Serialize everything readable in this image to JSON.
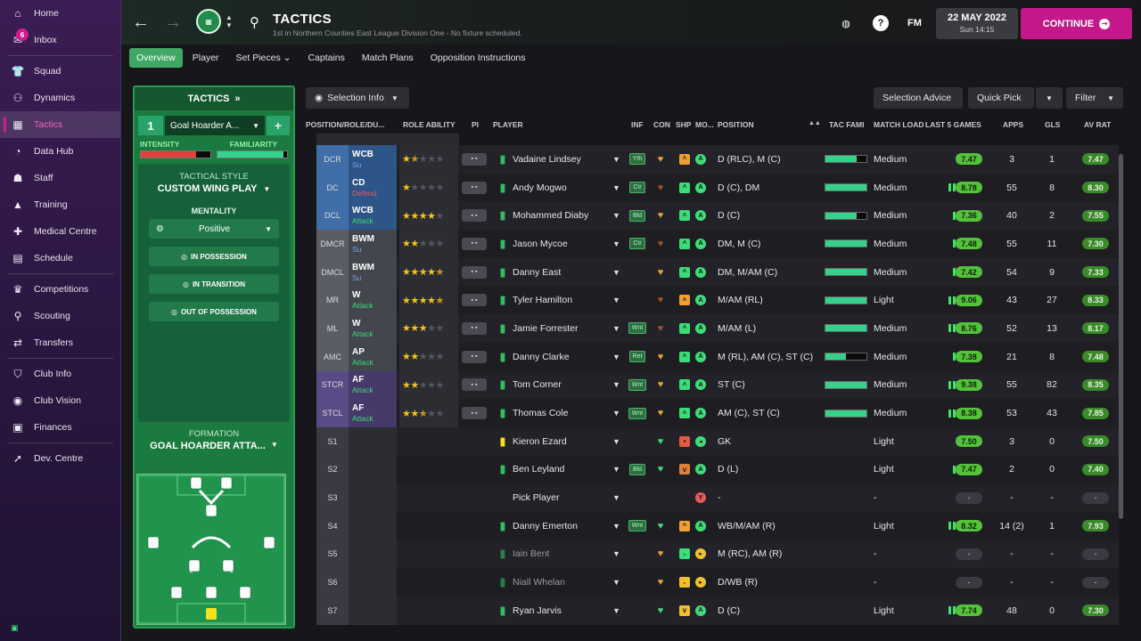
{
  "sidebar": {
    "items": [
      {
        "label": "Home",
        "icon": "home-icon",
        "glyph": "⌂"
      },
      {
        "label": "Inbox",
        "icon": "inbox-icon",
        "glyph": "✉",
        "badge": "6"
      },
      {
        "label": "Squad",
        "icon": "shirt-icon",
        "glyph": "👕"
      },
      {
        "label": "Dynamics",
        "icon": "dynamics-icon",
        "glyph": "⚇"
      },
      {
        "label": "Tactics",
        "icon": "tactics-icon",
        "glyph": "▦"
      },
      {
        "label": "Data Hub",
        "icon": "data-hub-icon",
        "glyph": "◔"
      },
      {
        "label": "Staff",
        "icon": "staff-icon",
        "glyph": "☗"
      },
      {
        "label": "Training",
        "icon": "training-icon",
        "glyph": "▲"
      },
      {
        "label": "Medical Centre",
        "icon": "medical-icon",
        "glyph": "✚"
      },
      {
        "label": "Schedule",
        "icon": "calendar-icon",
        "glyph": "▤"
      },
      {
        "label": "Competitions",
        "icon": "trophy-icon",
        "glyph": "♛"
      },
      {
        "label": "Scouting",
        "icon": "search-icon",
        "glyph": "⚲"
      },
      {
        "label": "Transfers",
        "icon": "transfers-icon",
        "glyph": "⇄"
      },
      {
        "label": "Club Info",
        "icon": "shield-icon",
        "glyph": "⛉"
      },
      {
        "label": "Club Vision",
        "icon": "vision-icon",
        "glyph": "◉"
      },
      {
        "label": "Finances",
        "icon": "finances-icon",
        "glyph": "▣"
      },
      {
        "label": "Dev. Centre",
        "icon": "dev-centre-icon",
        "glyph": "➚"
      }
    ],
    "active": "Tactics"
  },
  "header": {
    "title": "TACTICS",
    "subtitle": "1st in Northern Counties East League Division One - No fixture scheduled.",
    "date": "22 MAY 2022",
    "time": "Sun 14:15",
    "fm_label": "FM",
    "continue_label": "CONTINUE"
  },
  "tabs": [
    "Overview",
    "Player",
    "Set Pieces ⌄",
    "Captains",
    "Match Plans",
    "Opposition Instructions"
  ],
  "tactics_panel": {
    "header": "TACTICS",
    "slot_number": "1",
    "tactic_name": "Goal Hoarder A...",
    "intensity_label": "INTENSITY",
    "familiarity_label": "FAMILIARITY",
    "intensity_level": 0.8,
    "familiarity_level": 0.95,
    "tactical_style_label": "TACTICAL STYLE",
    "tactical_style": "CUSTOM WING PLAY",
    "mentality_label": "MENTALITY",
    "mentality": "Positive",
    "in_possession": "IN POSSESSION",
    "in_transition": "IN TRANSITION",
    "out_of_possession": "OUT OF POSSESSION",
    "formation_label": "FORMATION",
    "formation_name": "GOAL HOARDER ATTA..."
  },
  "toolbar": {
    "selection_info": "Selection Info",
    "selection_advice": "Selection Advice",
    "quick_pick": "Quick Pick",
    "filter": "Filter"
  },
  "columns": {
    "position_role_duty": "POSITION/ROLE/DU...",
    "role_ability": "ROLE ABILITY",
    "pi": "PI",
    "player": "PLAYER",
    "inf": "INF",
    "con": "CON",
    "shp": "SHP",
    "mo": "MO...",
    "position": "POSITION",
    "tac_fami": "TAC FAMI",
    "match_load": "MATCH LOAD",
    "last5": "LAST 5 GAMES",
    "apps": "APPS",
    "gls": "GLS",
    "av_rat": "AV RAT"
  },
  "rows": [
    {
      "pos": "DCR",
      "role": "WCB",
      "duty": "Su",
      "stars": 1.5,
      "player": "Vadaine Lindsey",
      "inf": "Yth",
      "con": "♥",
      "conColor": "#e8a03a",
      "shp": "^",
      "shpColor": "#f0a030",
      "mo": "A",
      "moColor": "#3ddc78",
      "position": "D (RLC), M (C)",
      "tacf": 0.75,
      "load": "Medium",
      "form": 3,
      "last5": "7.47",
      "apps": "3",
      "gls": "1",
      "avrat": "7.47",
      "group": "blue"
    },
    {
      "pos": "DC",
      "role": "CD",
      "duty": "Defend",
      "stars": 1,
      "player": "Andy Mogwo",
      "inf": "Ctr",
      "con": "♥",
      "conColor": "#a0522d",
      "shp": "^",
      "shpColor": "#3ddc78",
      "mo": "A",
      "moColor": "#3ddc78",
      "position": "D (C), DM",
      "tacf": 1.0,
      "load": "Medium",
      "form": 5,
      "last5": "8.78",
      "apps": "55",
      "gls": "8",
      "avrat": "8.30",
      "group": "blue"
    },
    {
      "pos": "DCL",
      "role": "WCB",
      "duty": "Attack",
      "stars": 4,
      "player": "Mohammed Diaby",
      "inf": "Bld",
      "con": "♥",
      "conColor": "#e8a03a",
      "shp": "^",
      "shpColor": "#3ddc78",
      "mo": "A",
      "moColor": "#3ddc78",
      "position": "D (C)",
      "tacf": 0.75,
      "load": "Medium",
      "form": 4,
      "last5": "7.36",
      "apps": "40",
      "gls": "2",
      "avrat": "7.55",
      "group": "blue"
    },
    {
      "pos": "DMCR",
      "role": "BWM",
      "duty": "Su",
      "stars": 2,
      "player": "Jason Mycoe",
      "inf": "Ctr",
      "con": "♥",
      "conColor": "#a0522d",
      "shp": "^",
      "shpColor": "#3ddc78",
      "mo": "A",
      "moColor": "#3ddc78",
      "position": "DM, M (C)",
      "tacf": 1.0,
      "load": "Medium",
      "form": 4,
      "last5": "7.48",
      "apps": "55",
      "gls": "11",
      "avrat": "7.30",
      "group": "grey"
    },
    {
      "pos": "DMCL",
      "role": "BWM",
      "duty": "Su",
      "stars": 4.5,
      "player": "Danny East",
      "inf": "",
      "con": "♥",
      "conColor": "#e8a03a",
      "shp": "^",
      "shpColor": "#3ddc78",
      "mo": "A",
      "moColor": "#3ddc78",
      "position": "DM, M/AM (C)",
      "tacf": 1.0,
      "load": "Medium",
      "form": 4,
      "last5": "7.42",
      "apps": "54",
      "gls": "9",
      "avrat": "7.33",
      "group": "grey"
    },
    {
      "pos": "MR",
      "role": "W",
      "duty": "Attack",
      "stars": 4.5,
      "player": "Tyler Hamilton",
      "inf": "",
      "con": "♥",
      "conColor": "#a0522d",
      "shp": "^",
      "shpColor": "#f0a030",
      "mo": "A",
      "moColor": "#3ddc78",
      "position": "M/AM (RL)",
      "tacf": 1.0,
      "load": "Light",
      "form": 5,
      "last5": "9.06",
      "apps": "43",
      "gls": "27",
      "avrat": "8.33",
      "group": "grey"
    },
    {
      "pos": "ML",
      "role": "W",
      "duty": "Attack",
      "stars": 3,
      "player": "Jamie Forrester",
      "inf": "Wnt",
      "con": "♥",
      "conColor": "#a0522d",
      "shp": "^",
      "shpColor": "#3ddc78",
      "mo": "A",
      "moColor": "#3ddc78",
      "position": "M/AM (L)",
      "tacf": 1.0,
      "load": "Medium",
      "form": 5,
      "last5": "8.76",
      "apps": "52",
      "gls": "13",
      "avrat": "8.17",
      "group": "grey"
    },
    {
      "pos": "AMC",
      "role": "AP",
      "duty": "Attack",
      "stars": 2,
      "player": "Danny Clarke",
      "inf": "Ret",
      "con": "♥",
      "conColor": "#e8a03a",
      "shp": "^",
      "shpColor": "#3ddc78",
      "mo": "A",
      "moColor": "#3ddc78",
      "position": "M (RL), AM (C), ST (C)",
      "tacf": 0.5,
      "load": "Medium",
      "form": 4,
      "last5": "7.38",
      "apps": "21",
      "gls": "8",
      "avrat": "7.48",
      "group": "grey"
    },
    {
      "pos": "STCR",
      "role": "AF",
      "duty": "Attack",
      "stars": 2,
      "player": "Tom Corner",
      "inf": "Wnt",
      "con": "♥",
      "conColor": "#e8a03a",
      "shp": "^",
      "shpColor": "#3ddc78",
      "mo": "A",
      "moColor": "#3ddc78",
      "position": "ST (C)",
      "tacf": 1.0,
      "load": "Medium",
      "form": 5,
      "last5": "9.38",
      "apps": "55",
      "gls": "82",
      "avrat": "8.35",
      "group": "purple"
    },
    {
      "pos": "STCL",
      "role": "AF",
      "duty": "Attack",
      "stars": 2.5,
      "player": "Thomas Cole",
      "inf": "Wnt",
      "con": "♥",
      "conColor": "#e8a03a",
      "shp": "^",
      "shpColor": "#3ddc78",
      "mo": "A",
      "moColor": "#3ddc78",
      "position": "AM (C), ST (C)",
      "tacf": 1.0,
      "load": "Medium",
      "form": 5,
      "last5": "8.38",
      "apps": "53",
      "gls": "43",
      "avrat": "7.85",
      "group": "purple"
    },
    {
      "pos": "S1",
      "role": "",
      "duty": "",
      "stars": 0,
      "player": "Kieron Ezard",
      "inf": "",
      "con": "♥",
      "conColor": "#3ddc78",
      "shp": "▪",
      "shpColor": "#e05a40",
      "mo": "◂",
      "moColor": "#3ddc78",
      "position": "GK",
      "tacf": 0,
      "load": "Light",
      "form": 3,
      "last5": "7.50",
      "apps": "3",
      "gls": "0",
      "avrat": "7.50",
      "group": "sub",
      "gk": true
    },
    {
      "pos": "S2",
      "role": "",
      "duty": "",
      "stars": 0,
      "player": "Ben Leyland",
      "inf": "Bld",
      "con": "♥",
      "conColor": "#3ddc78",
      "shp": "v",
      "shpColor": "#e08040",
      "mo": "A",
      "moColor": "#3ddc78",
      "position": "D (L)",
      "tacf": 0,
      "load": "Light",
      "form": 4,
      "last5": "7.47",
      "apps": "2",
      "gls": "0",
      "avrat": "7.40",
      "group": "sub"
    },
    {
      "pos": "S3",
      "role": "",
      "duty": "",
      "stars": 0,
      "player": "Pick Player",
      "inf": "",
      "con": "",
      "conColor": "#3ddc78",
      "shp": "",
      "shpColor": "",
      "mo": "Y",
      "moColor": "#e85a5a",
      "position": "-",
      "tacf": 0,
      "load": "-",
      "form": 0,
      "last5": "-",
      "apps": "-",
      "gls": "-",
      "avrat": "-",
      "group": "sub",
      "empty": true
    },
    {
      "pos": "S4",
      "role": "",
      "duty": "",
      "stars": 0,
      "player": "Danny Emerton",
      "inf": "Wnt",
      "con": "♥",
      "conColor": "#3ddc78",
      "shp": "^",
      "shpColor": "#f0a030",
      "mo": "A",
      "moColor": "#3ddc78",
      "position": "WB/M/AM (R)",
      "tacf": 0,
      "load": "Light",
      "form": 5,
      "last5": "8.32",
      "apps": "14 (2)",
      "gls": "1",
      "avrat": "7.93",
      "group": "sub"
    },
    {
      "pos": "S5",
      "role": "",
      "duty": "",
      "stars": 0,
      "player": "Iain Bent",
      "inf": "",
      "con": "♥",
      "conColor": "#e8a03a",
      "shp": "-",
      "shpColor": "#3ddc78",
      "mo": "▸",
      "moColor": "#f0c030",
      "position": "M (RC), AM (R)",
      "tacf": 0,
      "load": "-",
      "form": 0,
      "last5": "-",
      "apps": "-",
      "gls": "-",
      "avrat": "-",
      "group": "sub",
      "dim": true
    },
    {
      "pos": "S6",
      "role": "",
      "duty": "",
      "stars": 0,
      "player": "Niall Whelan",
      "inf": "",
      "con": "♥",
      "conColor": "#e8a03a",
      "shp": "-",
      "shpColor": "#f0c030",
      "mo": "▸",
      "moColor": "#f0c030",
      "position": "D/WB (R)",
      "tacf": 0,
      "load": "-",
      "form": 0,
      "last5": "-",
      "apps": "-",
      "gls": "-",
      "avrat": "-",
      "group": "sub",
      "dim": true
    },
    {
      "pos": "S7",
      "role": "",
      "duty": "",
      "stars": 0,
      "player": "Ryan Jarvis",
      "inf": "",
      "con": "♥",
      "conColor": "#3ddc78",
      "shp": "v",
      "shpColor": "#f0c030",
      "mo": "A",
      "moColor": "#3ddc78",
      "position": "D (C)",
      "tacf": 0,
      "load": "Light",
      "form": 5,
      "last5": "7.74",
      "apps": "48",
      "gls": "0",
      "avrat": "7.30",
      "group": "sub"
    }
  ],
  "colors": {
    "accent": "#c4188a",
    "tactic_green": "#1b7a3f",
    "rating_green": "#54c23a",
    "rating_dark": "#3a8a2a"
  }
}
